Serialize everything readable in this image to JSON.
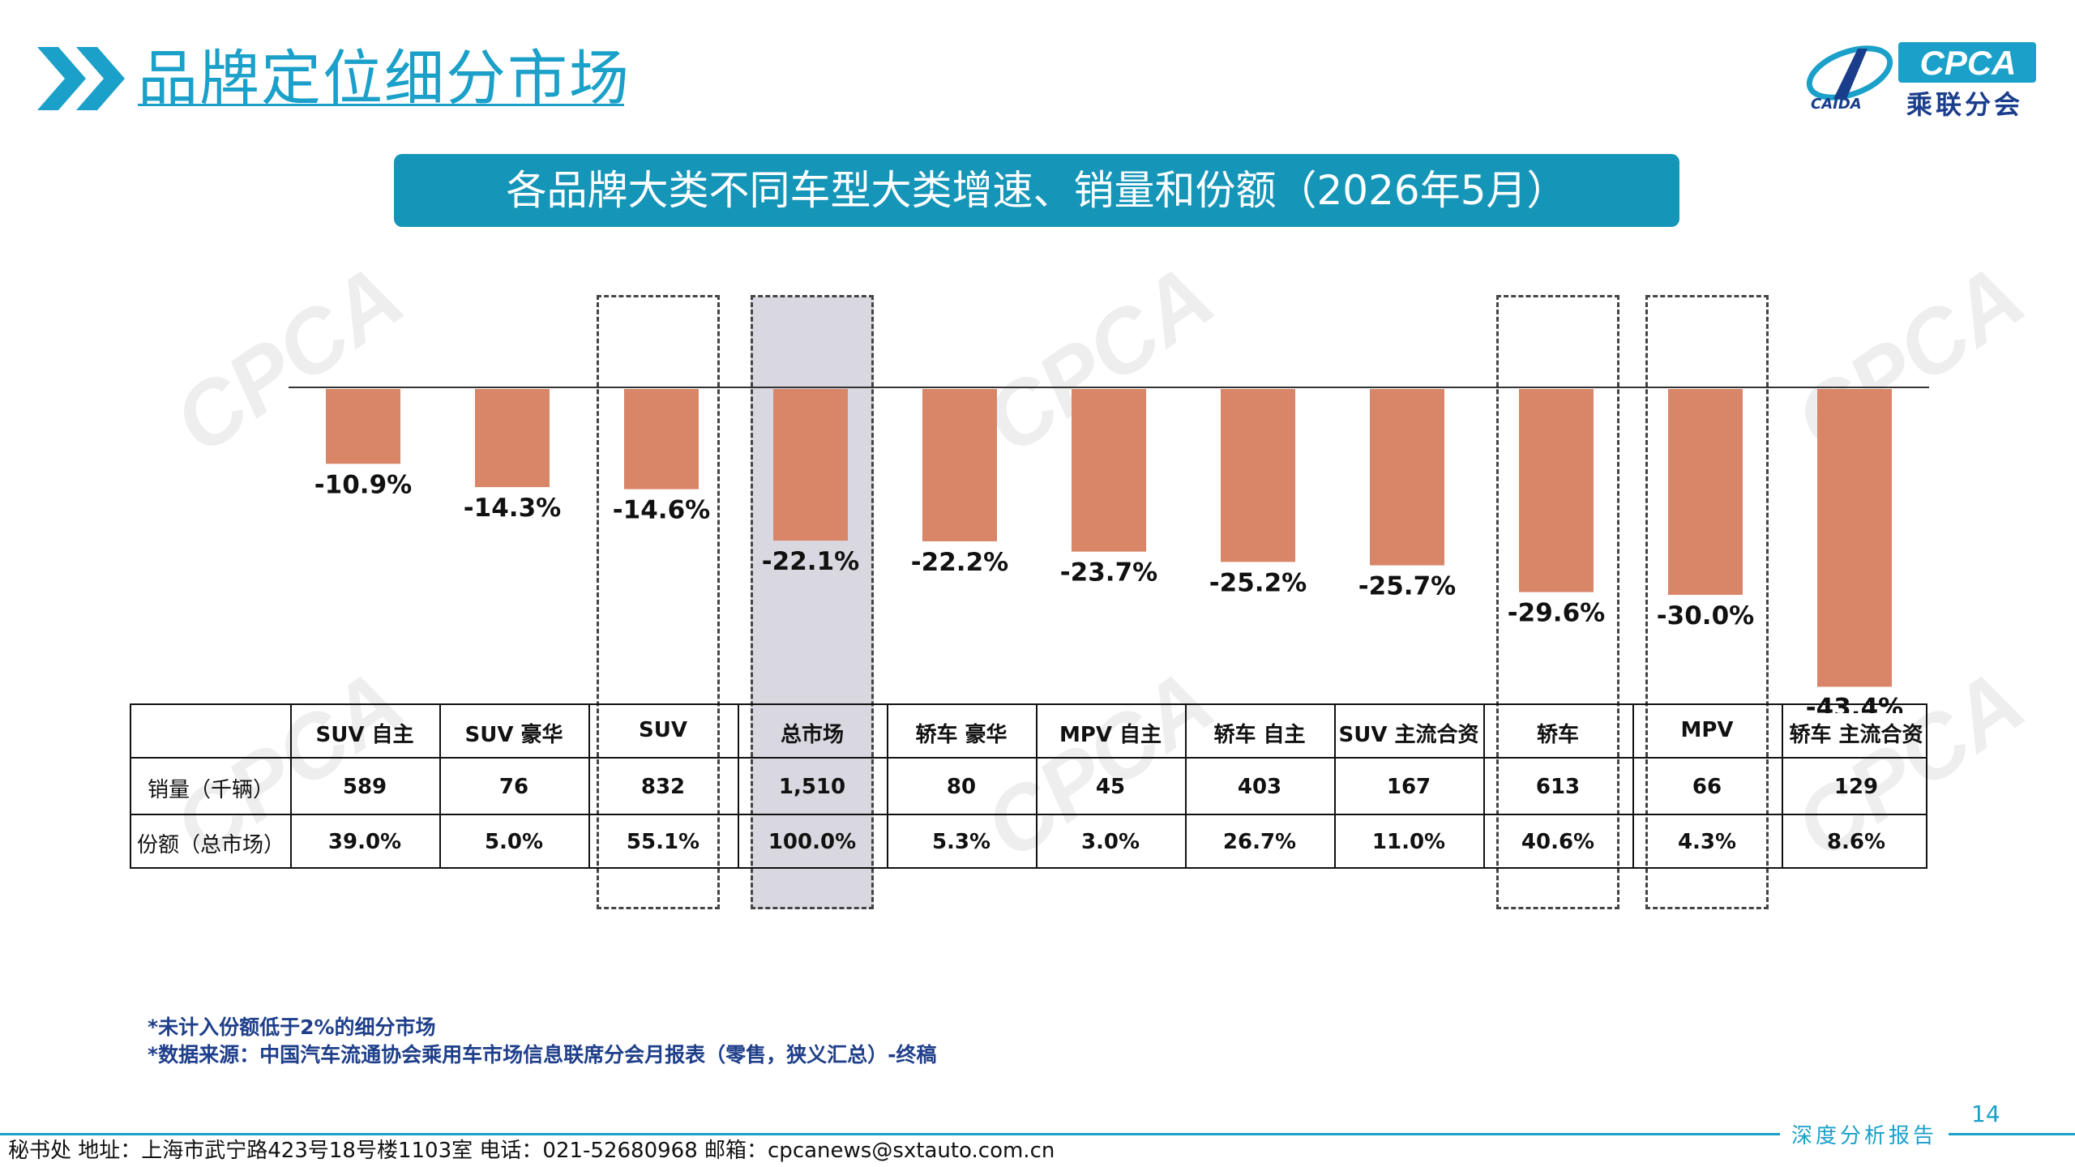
{
  "header": {
    "title": "品牌定位细分市场",
    "logo_text": "CPCA",
    "logo_subtext": "乘联分会",
    "logo_emblem_text": "CAIDA"
  },
  "banner": {
    "text": "各品牌大类不同车型大类增速、销量和份额（2026年5月）"
  },
  "chart_data": {
    "type": "bar",
    "categories": [
      "SUV 自主",
      "SUV 豪华",
      "SUV",
      "总市场",
      "轿车 豪华",
      "MPV 自主",
      "轿车 自主",
      "SUV 主流合资",
      "轿车",
      "MPV",
      "轿车 主流合资"
    ],
    "values": [
      -10.9,
      -14.3,
      -14.6,
      -22.1,
      -22.2,
      -23.7,
      -25.2,
      -25.7,
      -29.6,
      -30.0,
      -43.4
    ],
    "data_labels": [
      "-10.9%",
      "-14.3%",
      "-14.6%",
      "-22.1%",
      "-22.2%",
      "-23.7%",
      "-25.2%",
      "-25.7%",
      "-29.6%",
      "-30.0%",
      "-43.4%"
    ],
    "unit": "%",
    "ylim": [
      -45,
      0
    ],
    "bar_color": "#d98568",
    "grid": false,
    "highlighted_category": "总市场",
    "boxed_categories": [
      "SUV",
      "总市场",
      "轿车",
      "MPV"
    ]
  },
  "table": {
    "row_labels": [
      "销量（千辆）",
      "份额（总市场）"
    ],
    "sales": [
      "589",
      "76",
      "832",
      "1,510",
      "80",
      "45",
      "403",
      "167",
      "613",
      "66",
      "129"
    ],
    "shares": [
      "39.0%",
      "5.0%",
      "55.1%",
      "100.0%",
      "5.3%",
      "3.0%",
      "26.7%",
      "11.0%",
      "40.6%",
      "4.3%",
      "8.6%"
    ]
  },
  "notes": [
    "*未计入份额低于2%的细分市场",
    "*数据来源：中国汽车流通协会乘用车市场信息联席分会月报表（零售，狭义汇总）-终稿"
  ],
  "page_number": "14",
  "report_tag": "深度分析报告",
  "footer": "秘书处  地址：上海市武宁路423号18号楼1103室  电话：021-52680968  邮箱：cpcanews@sxtauto.com.cn",
  "colors": {
    "accent": "#1aa0c9",
    "banner": "#1596b8",
    "bar": "#d98568",
    "highlight": "#d9d8e0",
    "note": "#1f3f8a"
  }
}
